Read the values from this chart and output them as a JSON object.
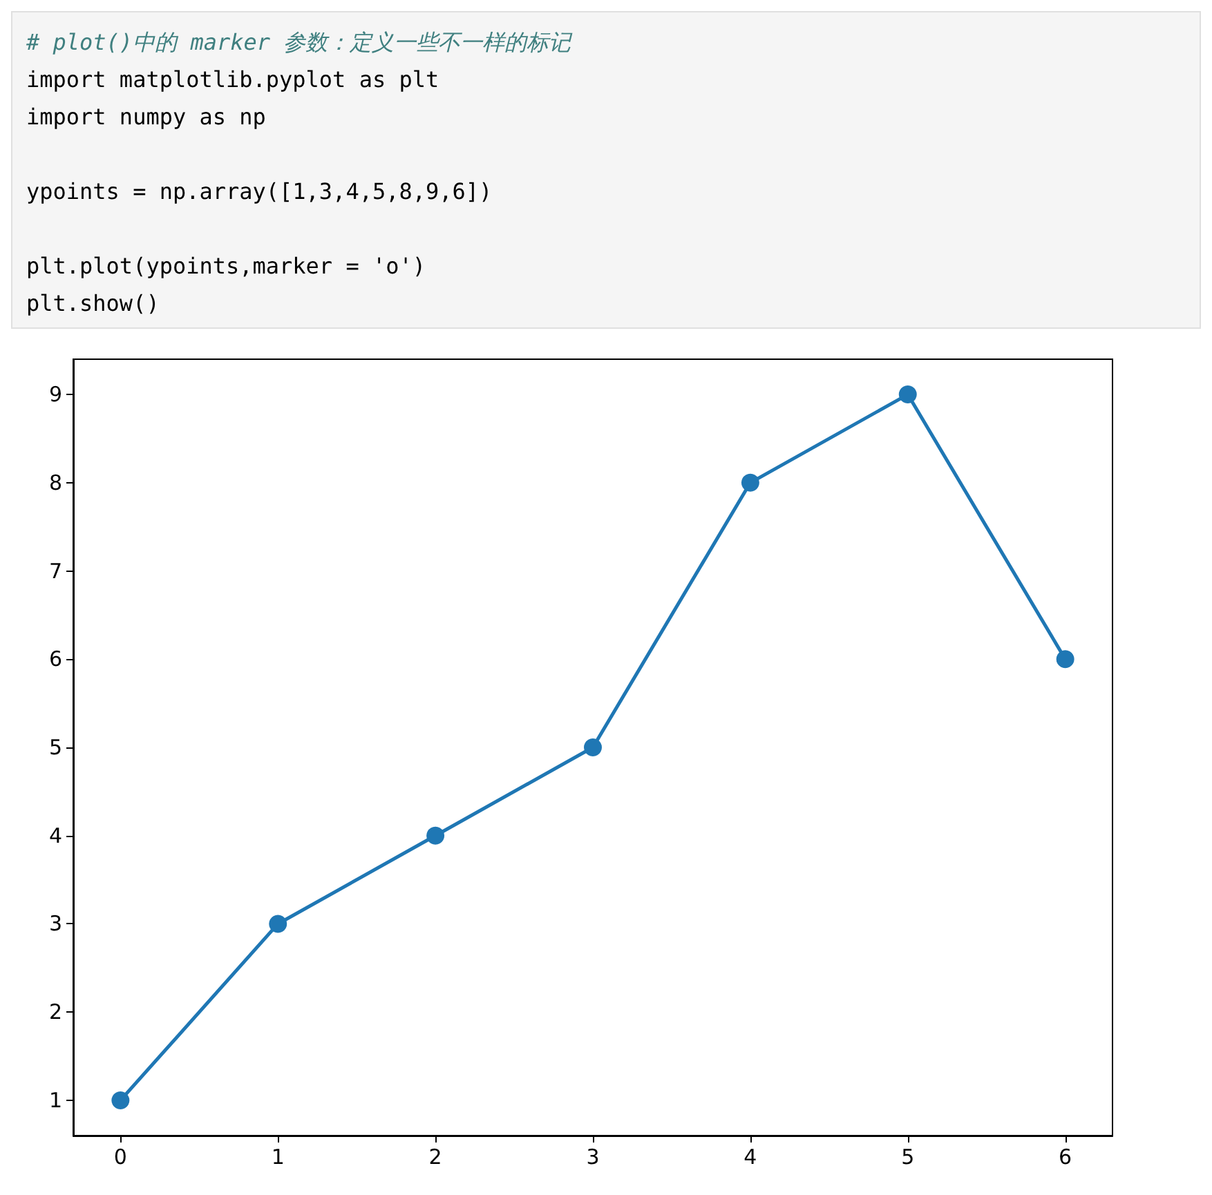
{
  "chart_data": {
    "type": "line",
    "annotations": [
      "# plot()中的 marker 参数：定义一些不一样的标记",
      "import matplotlib.pyplot as plt",
      "import numpy as np",
      "ypoints = np.array([1,3,4,5,8,9,6])",
      "plt.plot(ypoints,marker = 'o')",
      "plt.show()"
    ],
    "x": [
      0,
      1,
      2,
      3,
      4,
      5,
      6
    ],
    "series": [
      {
        "color": "#1f77b4",
        "values": [
          1,
          3,
          4,
          5,
          8,
          9,
          6
        ]
      }
    ],
    "xlim": [
      -0.3,
      6.3
    ],
    "xticks": [
      0,
      1,
      2,
      3,
      4,
      5,
      6
    ],
    "ylim": [
      0.6,
      9.4
    ],
    "yticks": [
      1,
      2,
      3,
      4,
      5,
      6,
      7,
      8,
      9
    ],
    "marker": "circle",
    "line_style": "solid"
  }
}
